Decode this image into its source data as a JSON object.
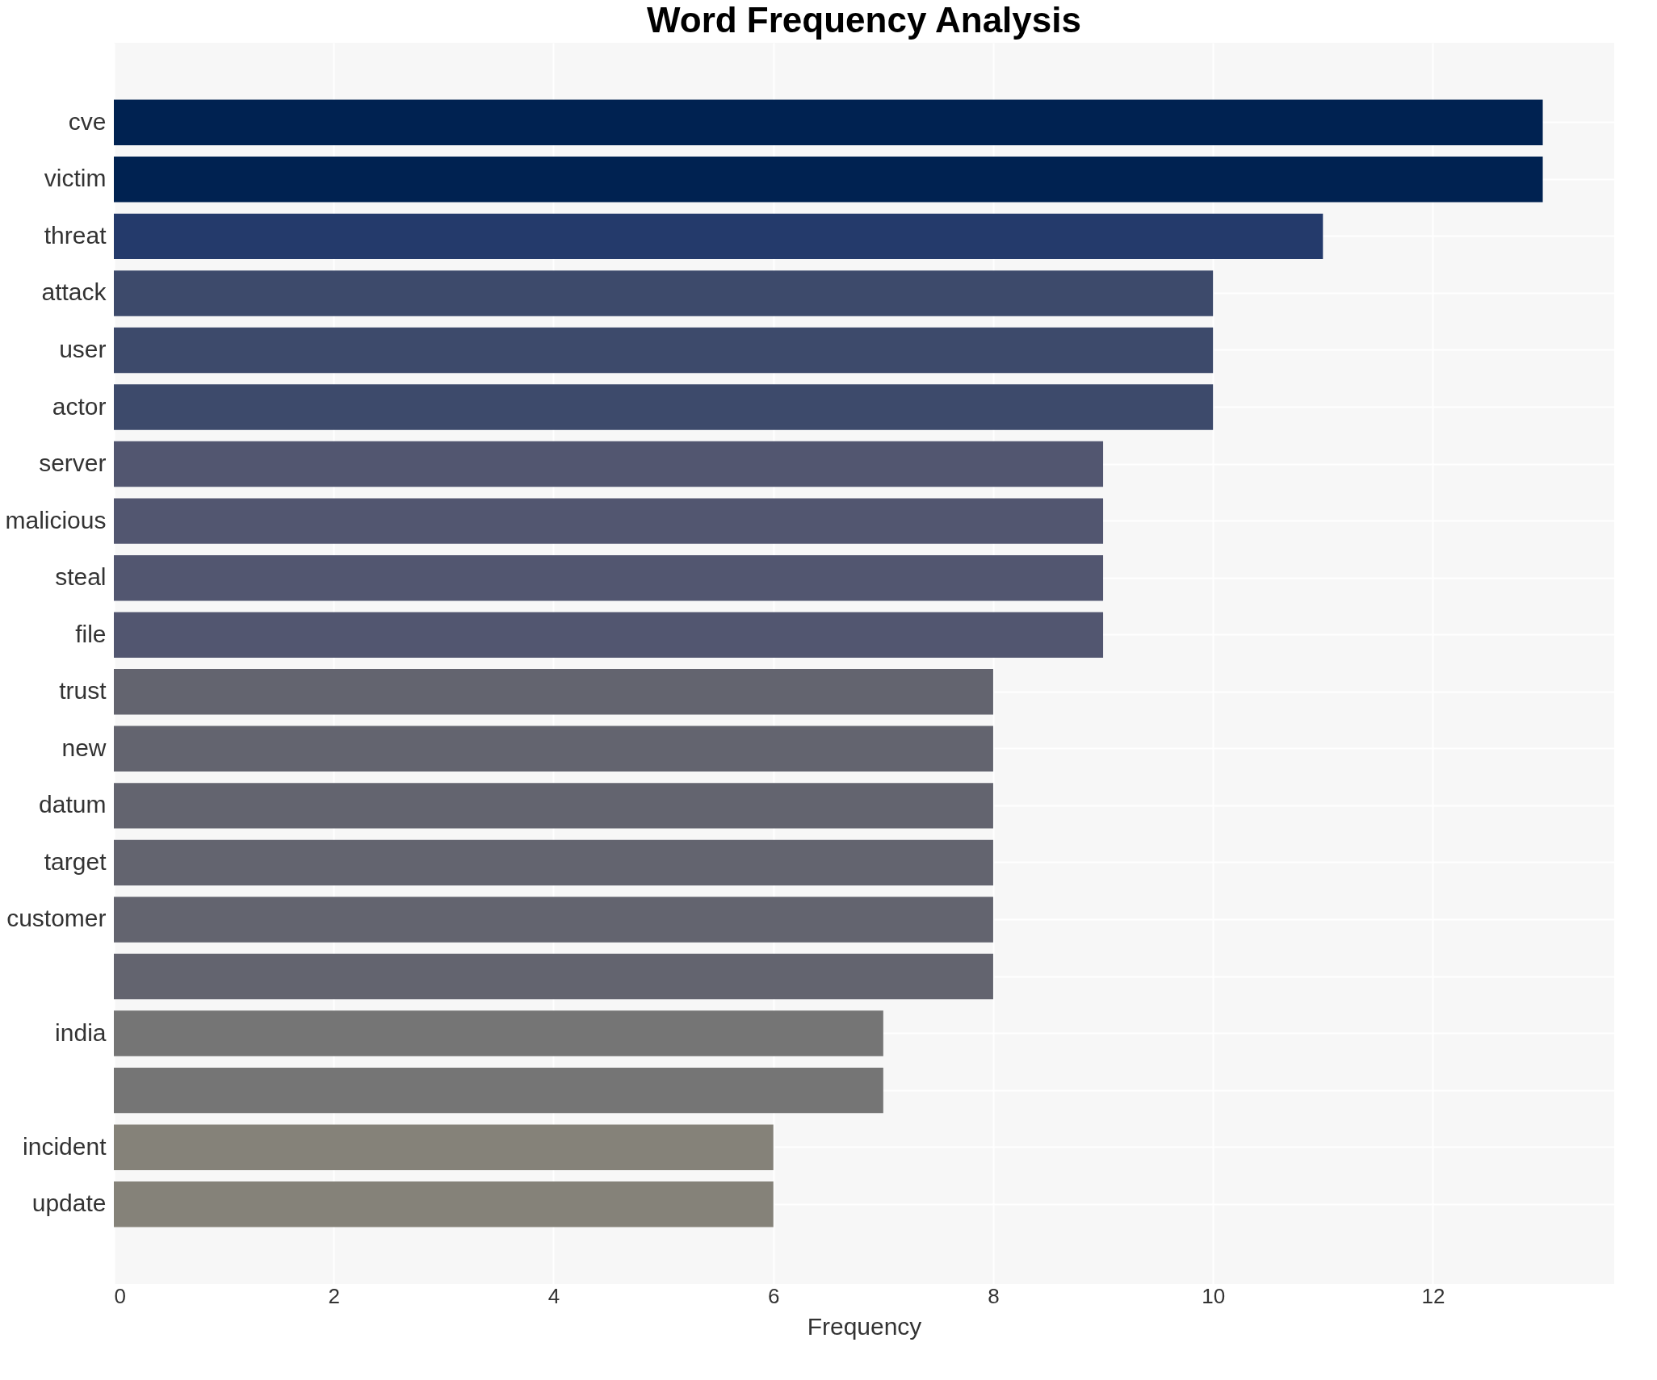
{
  "chart_data": {
    "type": "bar",
    "orientation": "horizontal",
    "title": "Word Frequency Analysis",
    "xlabel": "Frequency",
    "categories": [
      "cve",
      "victim",
      "threat",
      "attack",
      "user",
      "actor",
      "server",
      "malicious",
      "steal",
      "file",
      "trust",
      "new",
      "datum",
      "target",
      "customer",
      null,
      "india",
      null,
      "incident",
      "update"
    ],
    "values": [
      13,
      13,
      11,
      10,
      10,
      10,
      9,
      9,
      9,
      9,
      8,
      8,
      8,
      8,
      8,
      8,
      7,
      7,
      6,
      6
    ],
    "colors": [
      "#002251",
      "#002251",
      "#243a6b",
      "#3d4a6b",
      "#3d4a6b",
      "#3d4a6b",
      "#525670",
      "#525670",
      "#525670",
      "#525670",
      "#63646f",
      "#63646f",
      "#63646f",
      "#63646f",
      "#63646f",
      "#63646f",
      "#757575",
      "#757575",
      "#858279",
      "#858279"
    ],
    "xlim": [
      0,
      13.65
    ],
    "xticks": [
      0,
      2,
      4,
      6,
      8,
      10,
      12
    ],
    "grid": true
  }
}
